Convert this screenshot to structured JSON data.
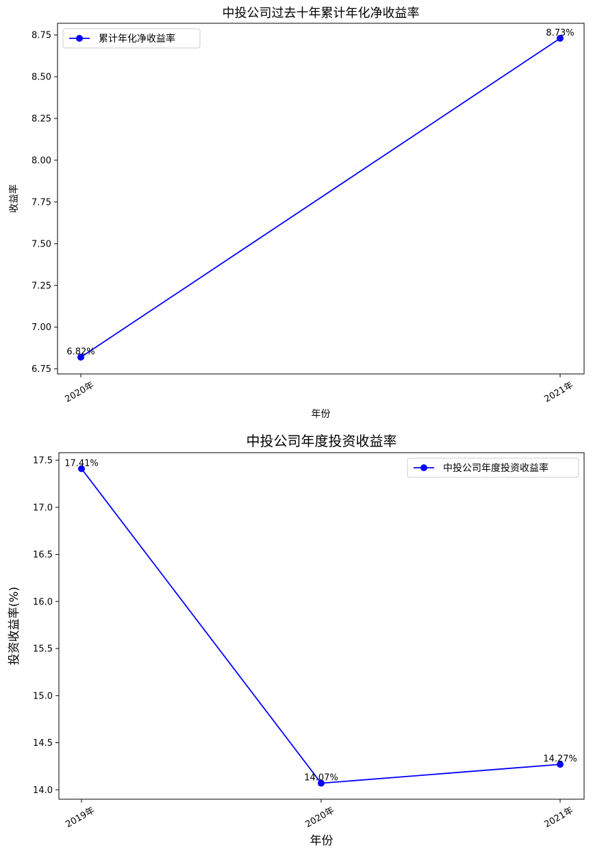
{
  "chart_data": [
    {
      "type": "line",
      "title": "中投公司过去十年累计年化净收益率",
      "xlabel": "年份",
      "ylabel": "收益率",
      "categories": [
        "2020年",
        "2021年"
      ],
      "series": [
        {
          "name": "累计年化净收益率",
          "values": [
            6.82,
            8.73
          ],
          "color": "#0000ff",
          "marker": "circle"
        }
      ],
      "data_labels": [
        "6.82%",
        "8.73%"
      ],
      "ylim": [
        6.72,
        8.82
      ],
      "yticks": [
        "6.75",
        "7.00",
        "7.25",
        "7.50",
        "7.75",
        "8.00",
        "8.25",
        "8.50",
        "8.75"
      ],
      "legend": "upper-left",
      "grid": false
    },
    {
      "type": "line",
      "title": "中投公司年度投资收益率",
      "xlabel": "年份",
      "ylabel": "投资收益率(%)",
      "categories": [
        "2019年",
        "2020年",
        "2021年"
      ],
      "series": [
        {
          "name": "中投公司年度投资收益率",
          "values": [
            17.41,
            14.07,
            14.27
          ],
          "color": "#0000ff",
          "marker": "circle"
        }
      ],
      "data_labels": [
        "17.41%",
        "14.07%",
        "14.27%"
      ],
      "ylim": [
        13.9,
        17.58
      ],
      "yticks": [
        "14.0",
        "14.5",
        "15.0",
        "15.5",
        "16.0",
        "16.5",
        "17.0",
        "17.5"
      ],
      "legend": "upper-right",
      "grid": false
    }
  ]
}
